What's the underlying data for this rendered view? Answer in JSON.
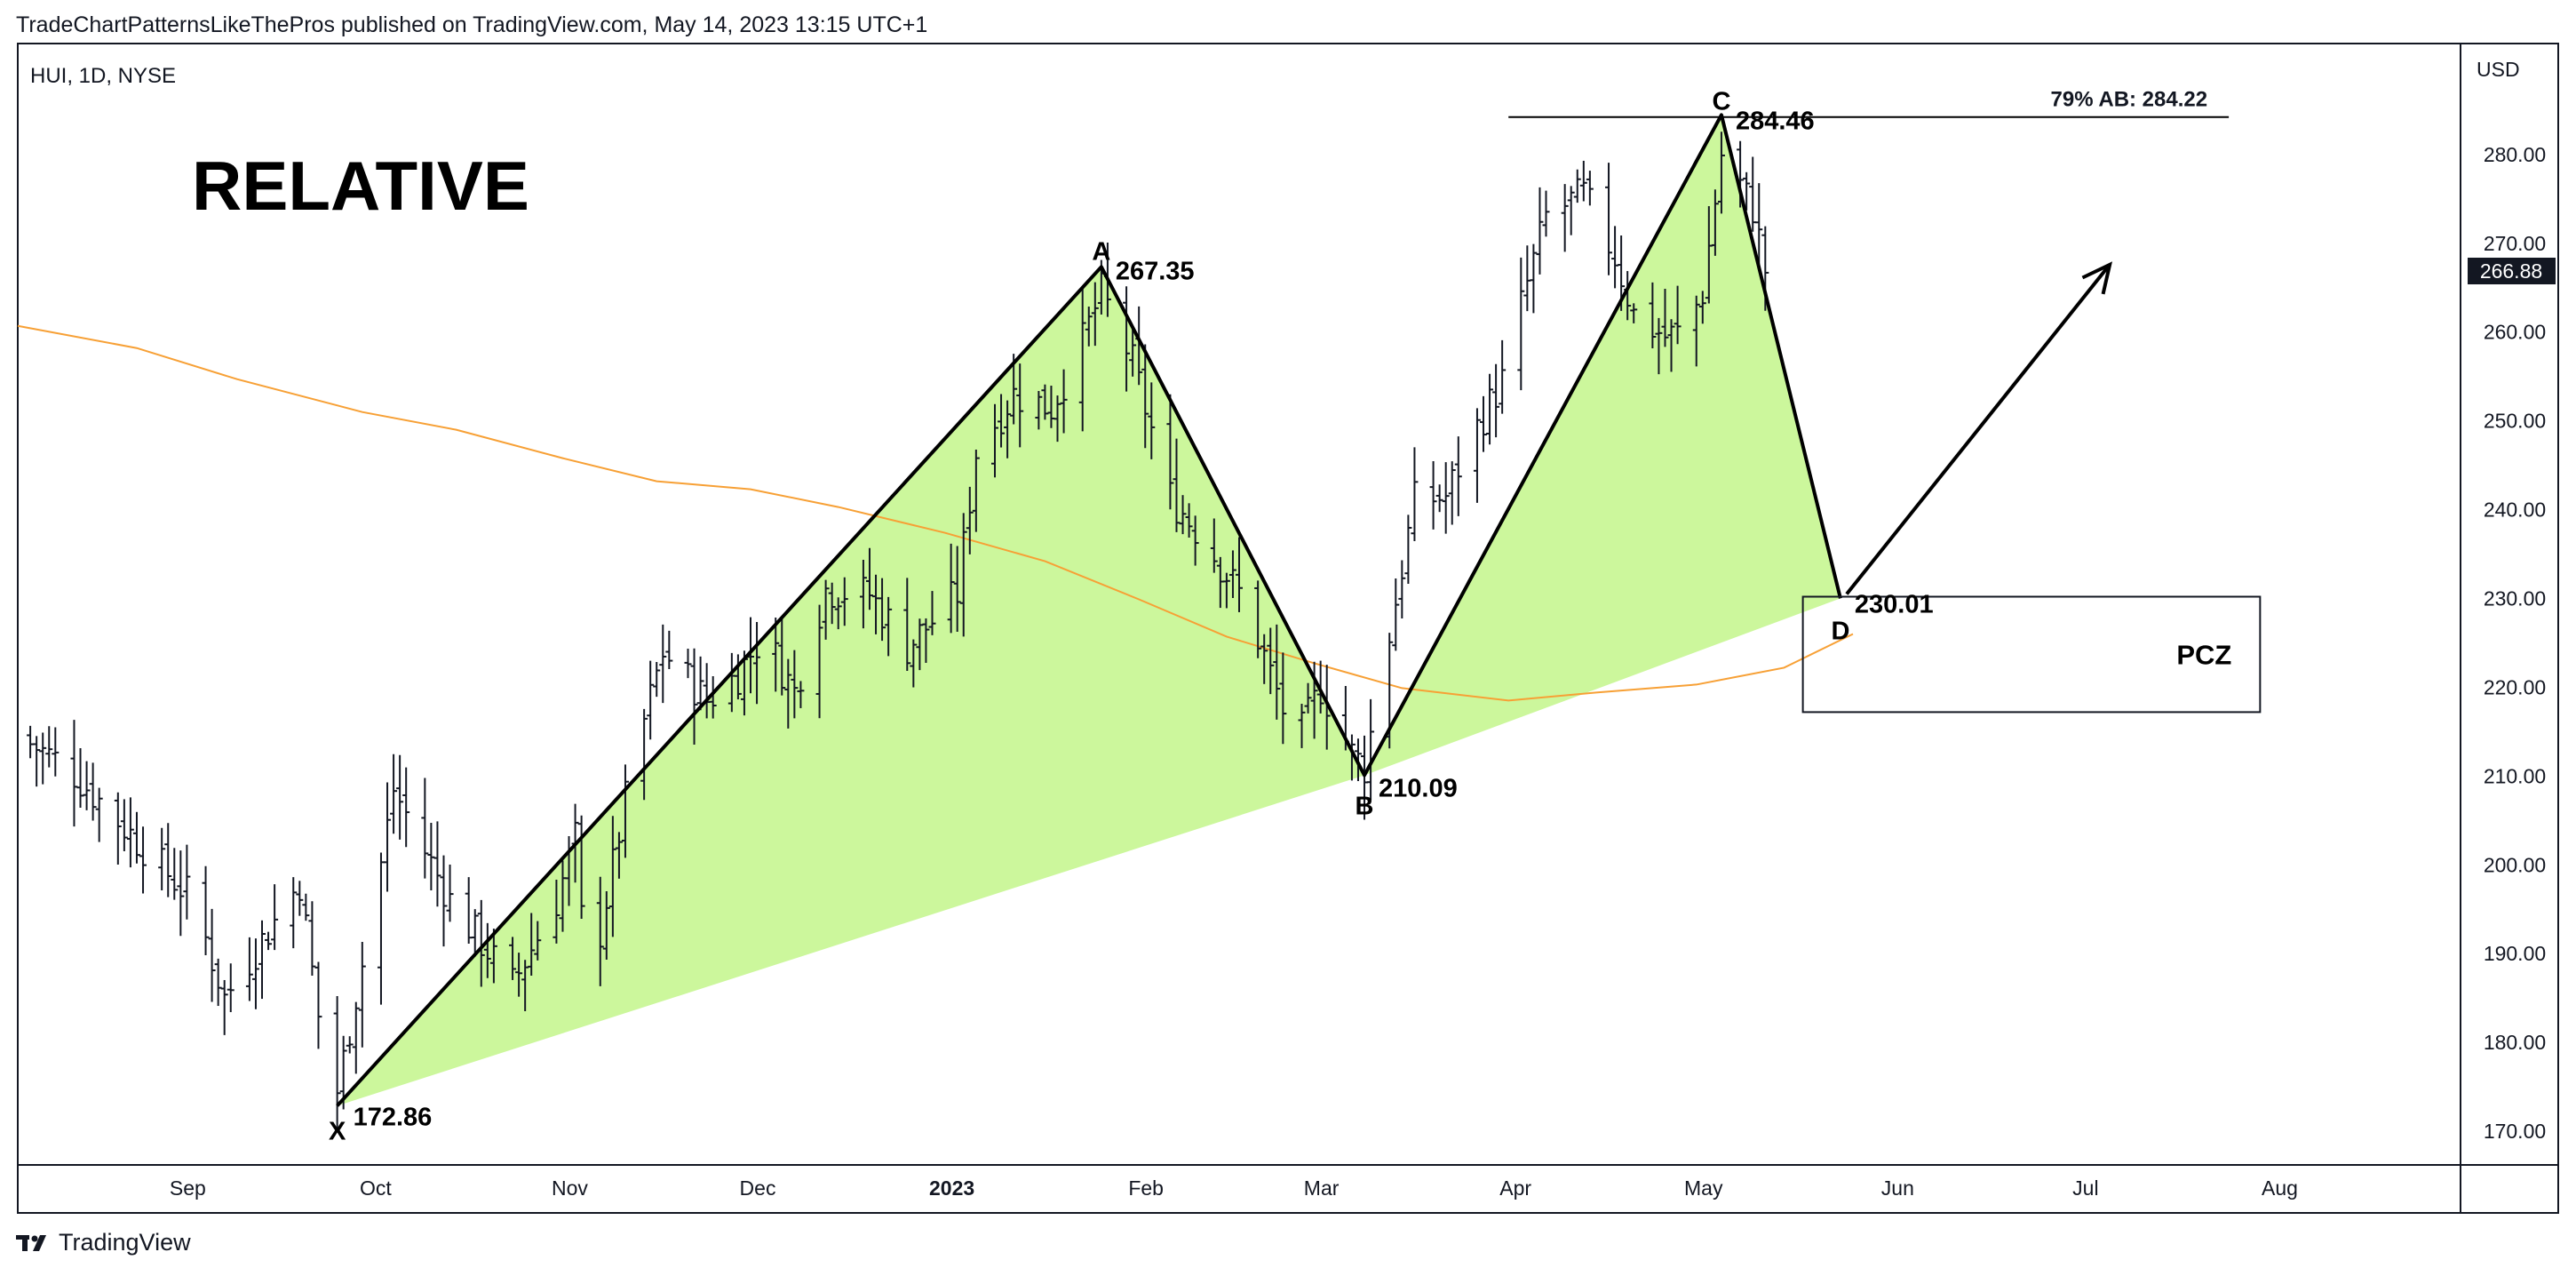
{
  "header": {
    "published_text": "TradeChartPatternsLikeThePros published on TradingView.com, May 14, 2023 13:15 UTC+1"
  },
  "footer": {
    "brand": "TradingView",
    "logo_icon": "tradingview-logo-icon"
  },
  "colors": {
    "background": "#ffffff",
    "frame": "#131722",
    "pattern_fill": "#ccf79c",
    "moving_average": "#f7a035",
    "bars": "#131722",
    "price_tag_bg": "#131722",
    "price_tag_text": "#ffffff"
  },
  "chart_data": {
    "type": "ohlc",
    "symbol_info": "HUI, 1D, NYSE",
    "currency_label": "USD",
    "annotation_title": "RELATIVE",
    "x_axis_labels": [
      {
        "label": "Sep",
        "date": "2022-09-01",
        "bold": false
      },
      {
        "label": "Oct",
        "date": "2022-10-01",
        "bold": false
      },
      {
        "label": "Nov",
        "date": "2022-11-01",
        "bold": false
      },
      {
        "label": "Dec",
        "date": "2022-12-01",
        "bold": false
      },
      {
        "label": "2023",
        "date": "2023-01-01",
        "bold": true
      },
      {
        "label": "Feb",
        "date": "2023-02-01",
        "bold": false
      },
      {
        "label": "Mar",
        "date": "2023-03-01",
        "bold": false
      },
      {
        "label": "Apr",
        "date": "2023-04-01",
        "bold": false
      },
      {
        "label": "May",
        "date": "2023-05-01",
        "bold": false
      },
      {
        "label": "Jun",
        "date": "2023-06-01",
        "bold": false
      },
      {
        "label": "Jul",
        "date": "2023-07-01",
        "bold": false
      },
      {
        "label": "Aug",
        "date": "2023-08-01",
        "bold": false
      }
    ],
    "x_range": [
      "2022-08-06",
      "2023-08-31"
    ],
    "y_ticks": [
      {
        "value": 280,
        "label": "280.00"
      },
      {
        "value": 270,
        "label": "270.00"
      },
      {
        "value": 260,
        "label": "260.00"
      },
      {
        "value": 250,
        "label": "250.00"
      },
      {
        "value": 240,
        "label": "240.00"
      },
      {
        "value": 230,
        "label": "230.00"
      },
      {
        "value": 220,
        "label": "220.00"
      },
      {
        "value": 210,
        "label": "210.00"
      },
      {
        "value": 200,
        "label": "200.00"
      },
      {
        "value": 190,
        "label": "190.00"
      },
      {
        "value": 180,
        "label": "180.00"
      },
      {
        "value": 170,
        "label": "170.00"
      }
    ],
    "ylim": [
      166.2,
      292.5
    ],
    "last_price": {
      "value": 266.88,
      "label": "266.88"
    },
    "pattern_points": [
      {
        "name": "X",
        "date": "2022-09-26",
        "price": 172.86,
        "label": "172.86"
      },
      {
        "name": "A",
        "date": "2023-01-26",
        "price": 267.35,
        "label": "267.35"
      },
      {
        "name": "B",
        "date": "2023-03-09",
        "price": 210.09,
        "label": "210.09"
      },
      {
        "name": "C",
        "date": "2023-05-05",
        "price": 284.46,
        "label": "284.46"
      },
      {
        "name": "D",
        "date": "2023-05-24",
        "price": 230.01,
        "label": "230.01"
      }
    ],
    "fib_line": {
      "price": 284.22,
      "label": "79% AB: 284.22",
      "start": "2023-04-01",
      "end": "2023-07-25"
    },
    "pcz_box": {
      "label": "PCZ",
      "start": "2023-05-18",
      "end": "2023-07-30",
      "top": 230.2,
      "bottom": 217.2
    },
    "projection_arrow": {
      "from_date": "2023-05-25",
      "from_price": 230.5,
      "to_date": "2023-07-06",
      "to_price": 267.6
    },
    "moving_average": [
      {
        "date": "2022-08-06",
        "value": 260.7
      },
      {
        "date": "2022-08-25",
        "value": 258.2
      },
      {
        "date": "2022-09-10",
        "value": 254.7
      },
      {
        "date": "2022-09-30",
        "value": 251.0
      },
      {
        "date": "2022-10-15",
        "value": 249.0
      },
      {
        "date": "2022-11-01",
        "value": 245.8
      },
      {
        "date": "2022-11-16",
        "value": 243.2
      },
      {
        "date": "2022-12-01",
        "value": 242.3
      },
      {
        "date": "2022-12-15",
        "value": 240.3
      },
      {
        "date": "2023-01-01",
        "value": 237.4
      },
      {
        "date": "2023-01-17",
        "value": 234.2
      },
      {
        "date": "2023-02-01",
        "value": 229.9
      },
      {
        "date": "2023-02-15",
        "value": 225.7
      },
      {
        "date": "2023-03-01",
        "value": 222.7
      },
      {
        "date": "2023-03-15",
        "value": 219.9
      },
      {
        "date": "2023-04-01",
        "value": 218.5
      },
      {
        "date": "2023-04-15",
        "value": 219.4
      },
      {
        "date": "2023-05-01",
        "value": 220.3
      },
      {
        "date": "2023-05-15",
        "value": 222.2
      },
      {
        "date": "2023-05-26",
        "value": 226.0
      }
    ],
    "anchors": [
      {
        "date": "2022-08-06",
        "price": 214.5
      },
      {
        "date": "2022-08-14",
        "price": 211.0
      },
      {
        "date": "2022-08-24",
        "price": 203.5
      },
      {
        "date": "2022-09-03",
        "price": 196.0
      },
      {
        "date": "2022-09-08",
        "price": 185.0
      },
      {
        "date": "2022-09-14",
        "price": 191.5
      },
      {
        "date": "2022-09-20",
        "price": 198.0
      },
      {
        "date": "2022-09-24",
        "price": 178.0
      },
      {
        "date": "2022-09-26",
        "price": 174.5
      },
      {
        "date": "2022-10-02",
        "price": 196.0
      },
      {
        "date": "2022-10-05",
        "price": 208.5
      },
      {
        "date": "2022-10-14",
        "price": 196.0
      },
      {
        "date": "2022-10-24",
        "price": 186.5
      },
      {
        "date": "2022-10-31",
        "price": 196.0
      },
      {
        "date": "2022-11-03",
        "price": 203.0
      },
      {
        "date": "2022-11-05",
        "price": 185.0
      },
      {
        "date": "2022-11-12",
        "price": 211.0
      },
      {
        "date": "2022-11-17",
        "price": 224.0
      },
      {
        "date": "2022-11-24",
        "price": 218.5
      },
      {
        "date": "2022-11-29",
        "price": 221.5
      },
      {
        "date": "2022-12-03",
        "price": 226.0
      },
      {
        "date": "2022-12-08",
        "price": 219.5
      },
      {
        "date": "2022-12-13",
        "price": 231.0
      },
      {
        "date": "2022-12-20",
        "price": 230.5
      },
      {
        "date": "2022-12-26",
        "price": 224.5
      },
      {
        "date": "2023-01-03",
        "price": 230.5
      },
      {
        "date": "2023-01-06",
        "price": 246.5
      },
      {
        "date": "2023-01-12",
        "price": 253.0
      },
      {
        "date": "2023-01-18",
        "price": 251.5
      },
      {
        "date": "2023-01-23",
        "price": 259.0
      },
      {
        "date": "2023-01-26",
        "price": 264.5
      },
      {
        "date": "2023-01-31",
        "price": 256.5
      },
      {
        "date": "2023-02-06",
        "price": 241.5
      },
      {
        "date": "2023-02-12",
        "price": 236.0
      },
      {
        "date": "2023-02-18",
        "price": 229.5
      },
      {
        "date": "2023-02-24",
        "price": 217.5
      },
      {
        "date": "2023-02-27",
        "price": 215.0
      },
      {
        "date": "2023-03-02",
        "price": 220.0
      },
      {
        "date": "2023-03-07",
        "price": 212.5
      },
      {
        "date": "2023-03-09",
        "price": 211.0
      },
      {
        "date": "2023-03-13",
        "price": 226.0
      },
      {
        "date": "2023-03-17",
        "price": 241.0
      },
      {
        "date": "2023-03-22",
        "price": 241.5
      },
      {
        "date": "2023-03-26",
        "price": 248.0
      },
      {
        "date": "2023-03-31",
        "price": 254.5
      },
      {
        "date": "2023-04-03",
        "price": 263.0
      },
      {
        "date": "2023-04-07",
        "price": 273.0
      },
      {
        "date": "2023-04-13",
        "price": 275.5
      },
      {
        "date": "2023-04-18",
        "price": 268.5
      },
      {
        "date": "2023-04-21",
        "price": 262.0
      },
      {
        "date": "2023-04-26",
        "price": 259.5
      },
      {
        "date": "2023-04-29",
        "price": 260.0
      },
      {
        "date": "2023-05-02",
        "price": 264.5
      },
      {
        "date": "2023-05-05",
        "price": 280.0
      },
      {
        "date": "2023-05-08",
        "price": 276.5
      },
      {
        "date": "2023-05-10",
        "price": 274.0
      },
      {
        "date": "2023-05-12",
        "price": 267.0
      }
    ]
  }
}
